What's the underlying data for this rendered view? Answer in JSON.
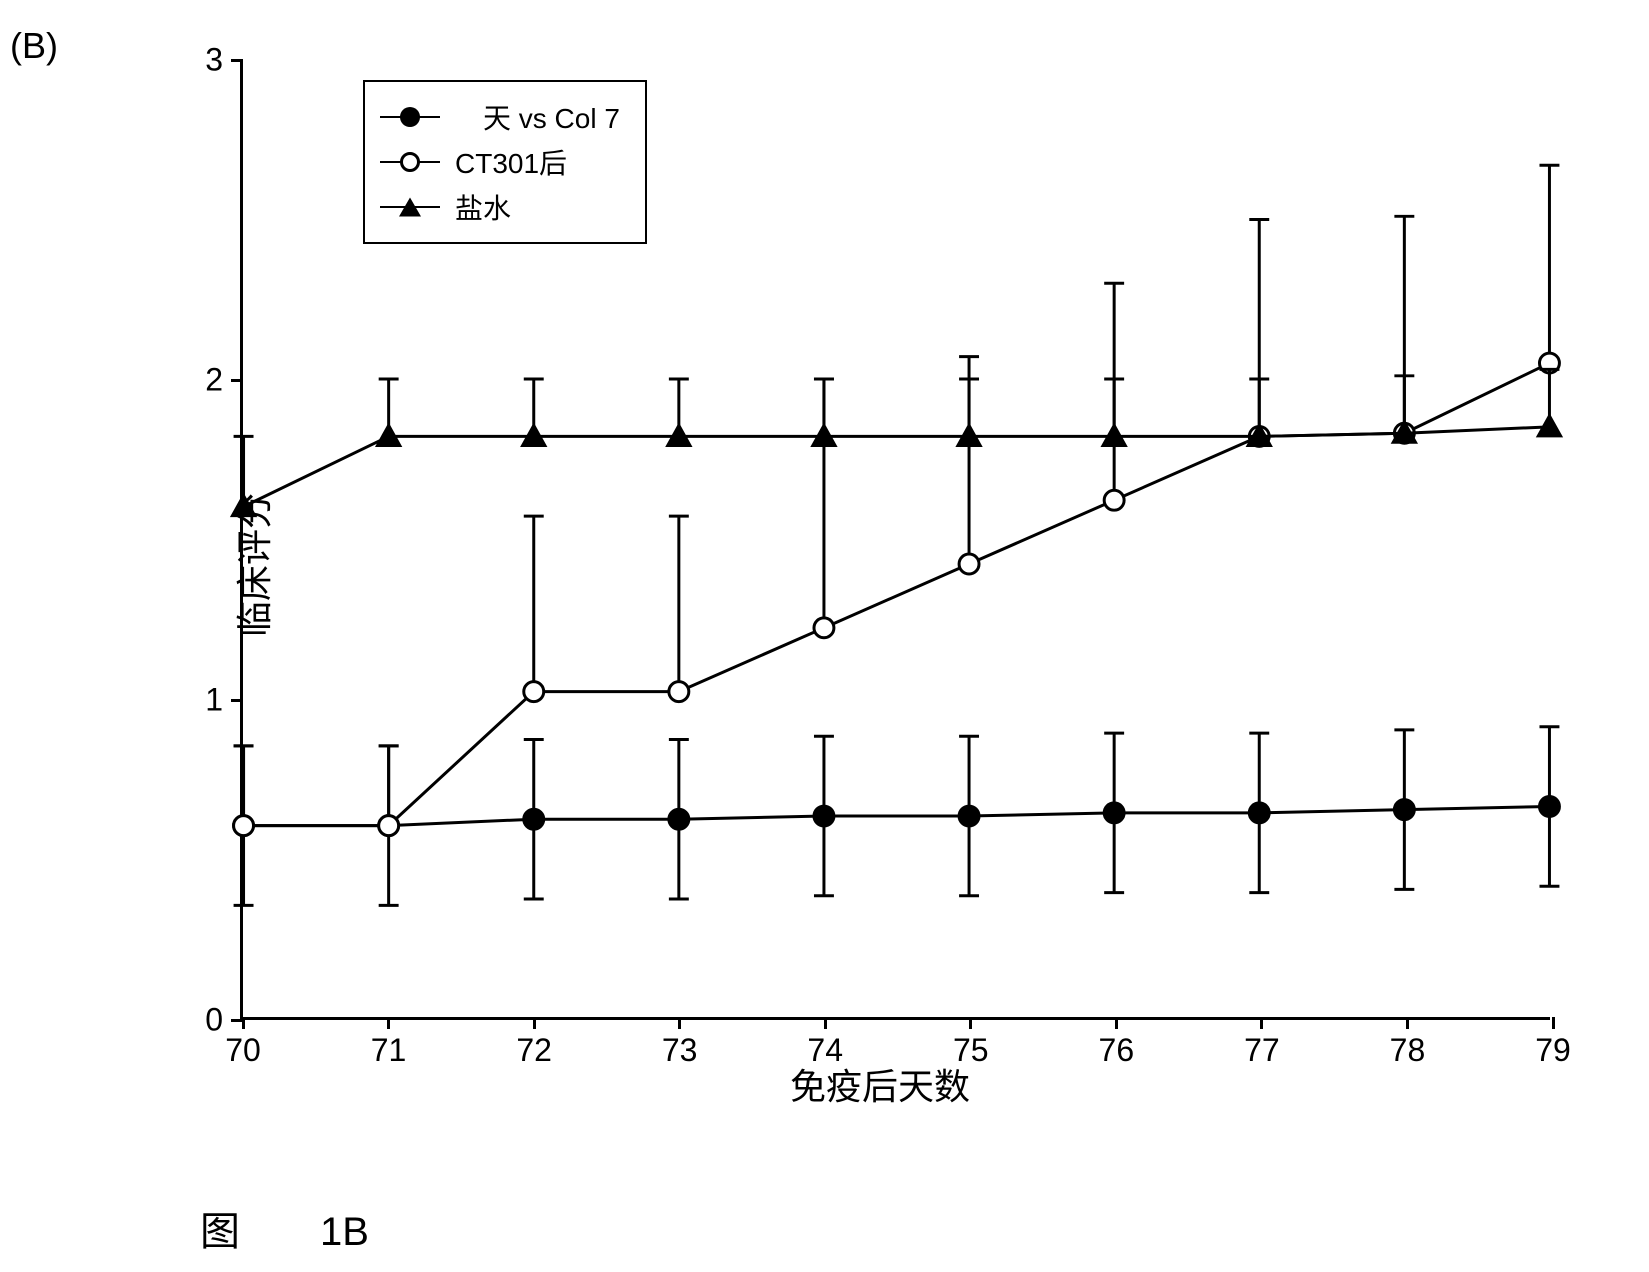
{
  "panel_label": "(B)",
  "figure_label": "图　　1B",
  "chart": {
    "type": "line",
    "x_label": "免疫后天数",
    "y_label": "临床评分",
    "x_ticks": [
      70,
      71,
      72,
      73,
      74,
      75,
      76,
      77,
      78,
      79
    ],
    "y_ticks": [
      0,
      1,
      2,
      3
    ],
    "xlim": [
      70,
      79
    ],
    "ylim": [
      0,
      3
    ],
    "background_color": "#ffffff",
    "axis_color": "#000000",
    "line_color": "#000000",
    "line_width": 3,
    "marker_size": 20,
    "tick_fontsize": 32,
    "label_fontsize": 36,
    "legend": {
      "position": "top-left",
      "border_color": "#000000",
      "items": [
        {
          "label": "　天 vs Col 7",
          "marker": "circle-filled"
        },
        {
          "label": "CT301后",
          "marker": "circle-open"
        },
        {
          "label": "盐水",
          "marker": "triangle-filled"
        }
      ]
    },
    "series": [
      {
        "name": "天 vs Col 7",
        "marker": "circle-filled",
        "fill": "#000000",
        "stroke": "#000000",
        "x": [
          70,
          71,
          72,
          73,
          74,
          75,
          76,
          77,
          78,
          79
        ],
        "y": [
          0.6,
          0.6,
          0.62,
          0.62,
          0.63,
          0.63,
          0.64,
          0.64,
          0.65,
          0.66
        ],
        "err_up": [
          0.25,
          0.25,
          0.25,
          0.25,
          0.25,
          0.25,
          0.25,
          0.25,
          0.25,
          0.25
        ],
        "err_down": [
          0.25,
          0.25,
          0.25,
          0.25,
          0.25,
          0.25,
          0.25,
          0.25,
          0.25,
          0.25
        ]
      },
      {
        "name": "CT301后",
        "marker": "circle-open",
        "fill": "#ffffff",
        "stroke": "#000000",
        "x": [
          70,
          71,
          72,
          73,
          74,
          75,
          76,
          77,
          78,
          79
        ],
        "y": [
          0.6,
          0.6,
          1.02,
          1.02,
          1.22,
          1.42,
          1.62,
          1.82,
          1.83,
          2.05
        ],
        "err_up": [
          0.25,
          0.25,
          0.55,
          0.55,
          0.78,
          0.65,
          0.68,
          0.68,
          0.68,
          0.62
        ],
        "err_down": [
          0,
          0,
          0,
          0,
          0,
          0,
          0,
          0,
          0,
          0
        ]
      },
      {
        "name": "盐水",
        "marker": "triangle-filled",
        "fill": "#000000",
        "stroke": "#000000",
        "x": [
          70,
          71,
          72,
          73,
          74,
          75,
          76,
          77,
          78,
          79
        ],
        "y": [
          1.6,
          1.82,
          1.82,
          1.82,
          1.82,
          1.82,
          1.82,
          1.82,
          1.83,
          1.85
        ],
        "err_up": [
          0.22,
          0.18,
          0.18,
          0.18,
          0.18,
          0.18,
          0.18,
          0.18,
          0.18,
          0.18
        ],
        "err_down": [
          0,
          0,
          0,
          0,
          0,
          0,
          0,
          0,
          0,
          0
        ]
      }
    ]
  }
}
